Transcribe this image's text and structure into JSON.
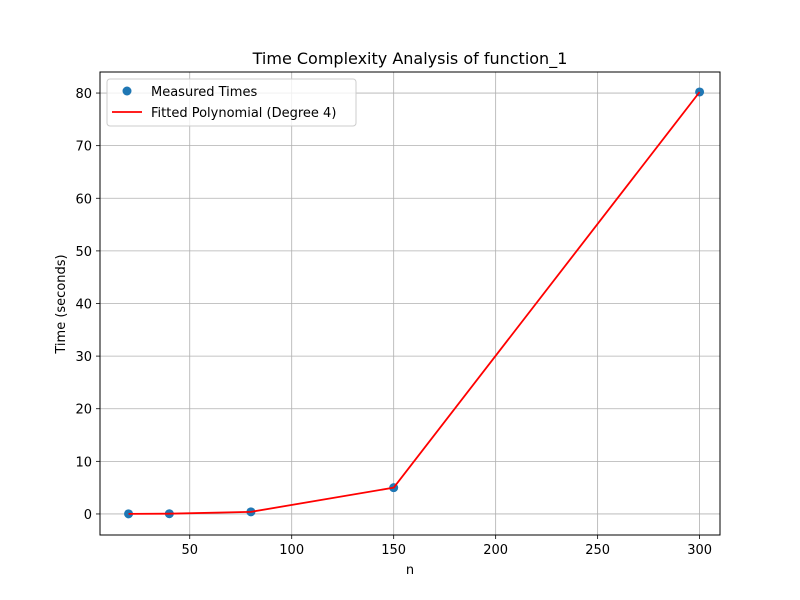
{
  "chart_data": {
    "type": "line",
    "title": "Time Complexity Analysis of function_1",
    "xlabel": "n",
    "ylabel": "Time (seconds)",
    "xlim": [
      6,
      310
    ],
    "ylim": [
      -4,
      84
    ],
    "xticks": [
      50,
      100,
      150,
      200,
      250,
      300
    ],
    "yticks": [
      0,
      10,
      20,
      30,
      40,
      50,
      60,
      70,
      80
    ],
    "grid": true,
    "legend_position": "top-left",
    "series": [
      {
        "name": "Measured Times",
        "kind": "scatter",
        "color": "#1f77b4",
        "x": [
          20,
          40,
          80,
          150,
          300
        ],
        "y": [
          0.02,
          0.05,
          0.4,
          5.0,
          80.2
        ]
      },
      {
        "name": "Fitted Polynomial (Degree 4)",
        "kind": "line",
        "color": "#ff0000",
        "x": [
          20,
          40,
          80,
          150,
          300
        ],
        "y": [
          0.02,
          0.05,
          0.4,
          5.0,
          80.2
        ]
      }
    ]
  }
}
